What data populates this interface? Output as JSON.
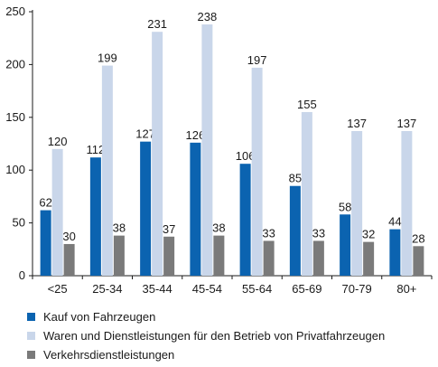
{
  "chart_data": {
    "type": "bar",
    "categories": [
      "<25",
      "25-34",
      "35-44",
      "45-54",
      "55-64",
      "65-69",
      "70-79",
      "80+"
    ],
    "series": [
      {
        "name": "Kauf von Fahrzeugen",
        "values": [
          62,
          112,
          127,
          126,
          106,
          85,
          58,
          44
        ],
        "color": "#0b63b0"
      },
      {
        "name": "Waren und Dienstleistungen für den Betrieb von Privatfahrzeugen",
        "values": [
          120,
          199,
          231,
          238,
          197,
          155,
          137,
          137
        ],
        "color": "#c9d6ea"
      },
      {
        "name": "Verkehrsdienstleistungen",
        "values": [
          30,
          38,
          37,
          38,
          33,
          33,
          32,
          28
        ],
        "color": "#7a7a7a"
      }
    ],
    "yticks": [
      0,
      50,
      100,
      150,
      200,
      250
    ],
    "ylim": [
      0,
      250
    ],
    "grid": false,
    "legend_position": "bottom"
  }
}
